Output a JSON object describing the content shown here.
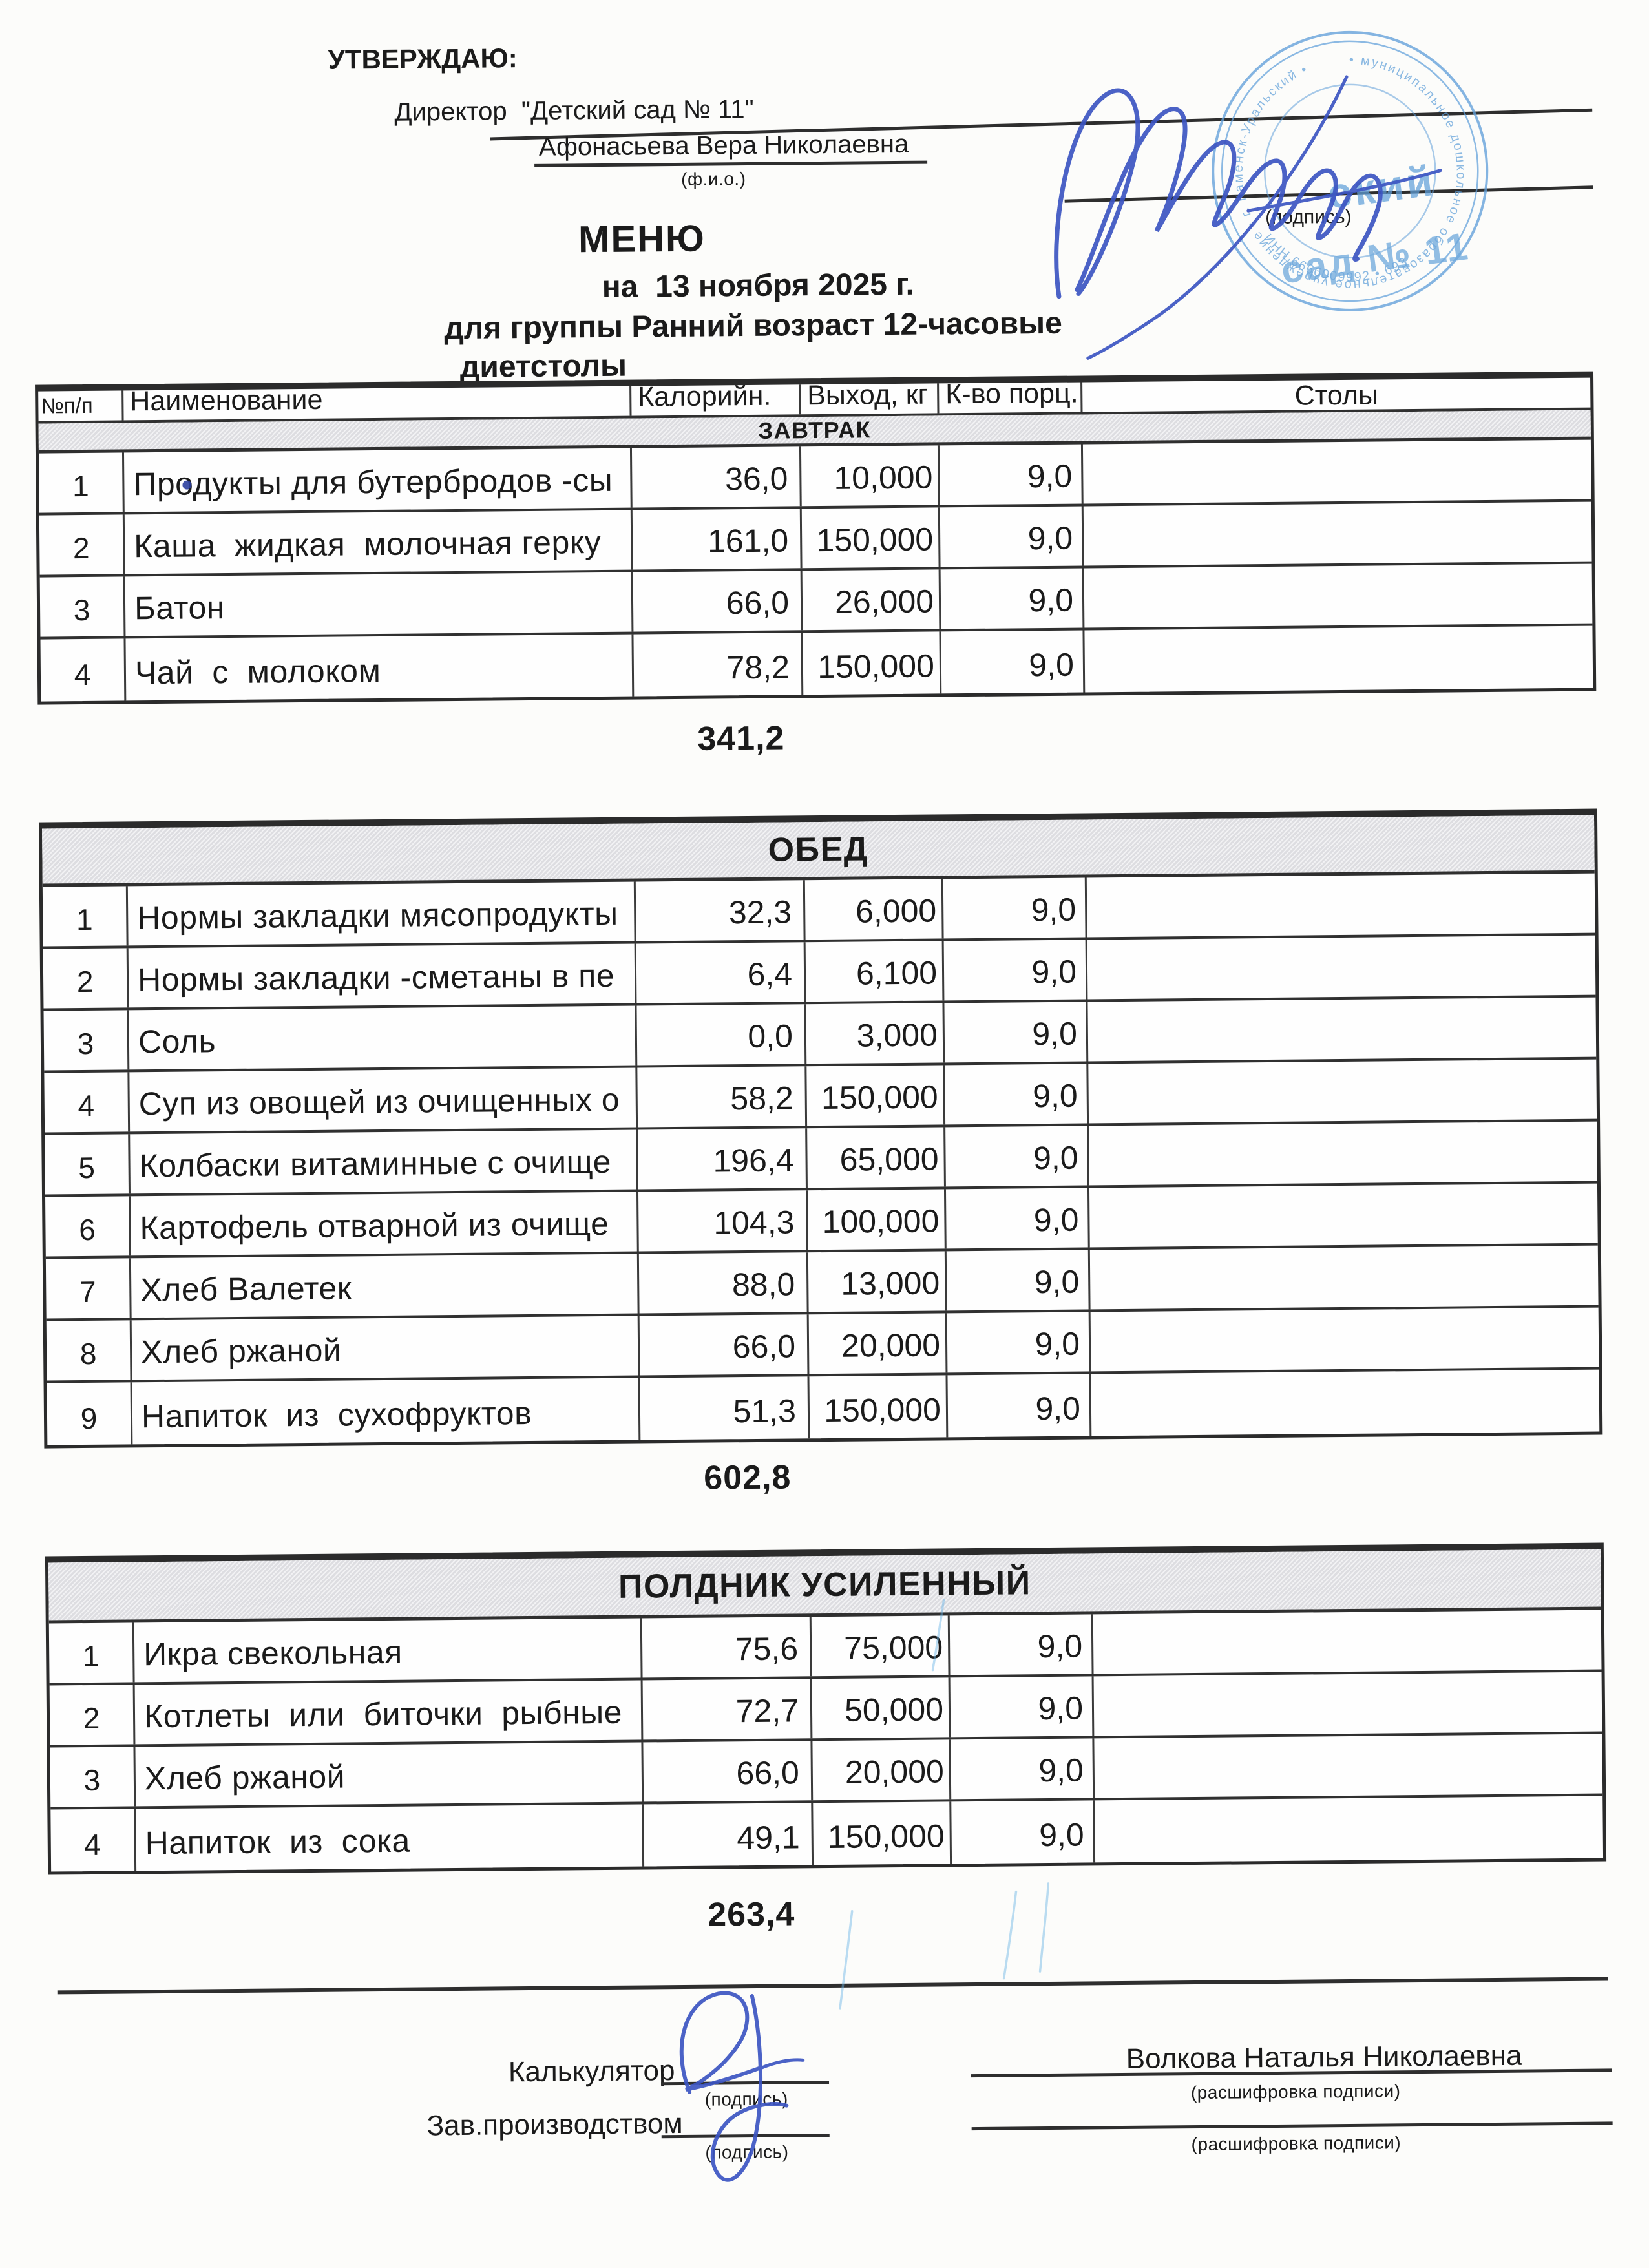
{
  "approval": {
    "approve": "УТВЕРЖДАЮ:",
    "director": "Директор  \"Детский сад № 11\"",
    "director_name": "Афонасьева Вера Николаевна",
    "fio_caption": "(ф.и.о.)",
    "sign_caption": "(подпись)"
  },
  "title": {
    "heading": "МЕНЮ",
    "date_line": "на  13 ноября 2025 г.",
    "group_line": "для группы Ранний возраст 12-часовые",
    "diet_line": "диетстолы"
  },
  "table_headers": {
    "num": "№п/п",
    "name": "Наименование",
    "calories": "Калорийн.",
    "output": "Выход, кг",
    "portions": "К-во порц.",
    "tables": "Столы"
  },
  "sections": [
    {
      "title": "ЗАВТРАК",
      "total": "341,2",
      "rows": [
        {
          "num": "1",
          "name": "Продукты для бутербродов -сы",
          "cal": "36,0",
          "out": "10,000",
          "port": "9,0"
        },
        {
          "num": "2",
          "name": "Каша  жидкая  молочная герку",
          "cal": "161,0",
          "out": "150,000",
          "port": "9,0"
        },
        {
          "num": "3",
          "name": "Батон",
          "cal": "66,0",
          "out": "26,000",
          "port": "9,0"
        },
        {
          "num": "4",
          "name": "Чай  с  молоком",
          "cal": "78,2",
          "out": "150,000",
          "port": "9,0"
        }
      ]
    },
    {
      "title": "ОБЕД",
      "total": "602,8",
      "rows": [
        {
          "num": "1",
          "name": "Нормы закладки мясопродукты",
          "cal": "32,3",
          "out": "6,000",
          "port": "9,0"
        },
        {
          "num": "2",
          "name": "Нормы закладки -сметаны в пе",
          "cal": "6,4",
          "out": "6,100",
          "port": "9,0"
        },
        {
          "num": "3",
          "name": "Соль",
          "cal": "0,0",
          "out": "3,000",
          "port": "9,0"
        },
        {
          "num": "4",
          "name": "Суп из овощей из очищенных о",
          "cal": "58,2",
          "out": "150,000",
          "port": "9,0"
        },
        {
          "num": "5",
          "name": "Колбаски витаминные с очище",
          "cal": "196,4",
          "out": "65,000",
          "port": "9,0"
        },
        {
          "num": "6",
          "name": "Картофель отварной из очище",
          "cal": "104,3",
          "out": "100,000",
          "port": "9,0"
        },
        {
          "num": "7",
          "name": "Хлеб Валетек",
          "cal": "88,0",
          "out": "13,000",
          "port": "9,0"
        },
        {
          "num": "8",
          "name": "Хлеб ржаной",
          "cal": "66,0",
          "out": "20,000",
          "port": "9,0"
        },
        {
          "num": "9",
          "name": "Напиток  из  сухофруктов",
          "cal": "51,3",
          "out": "150,000",
          "port": "9,0"
        }
      ]
    },
    {
      "title": "ПОЛДНИК УСИЛЕННЫЙ",
      "total": "263,4",
      "rows": [
        {
          "num": "1",
          "name": "Икра свекольная",
          "cal": "75,6",
          "out": "75,000",
          "port": "9,0"
        },
        {
          "num": "2",
          "name": "Котлеты  или  биточки  рыбные",
          "cal": "72,7",
          "out": "50,000",
          "port": "9,0"
        },
        {
          "num": "3",
          "name": "Хлеб ржаной",
          "cal": "66,0",
          "out": "20,000",
          "port": "9,0"
        },
        {
          "num": "4",
          "name": "Напиток  из  сока",
          "cal": "49,1",
          "out": "150,000",
          "port": "9,0"
        }
      ]
    }
  ],
  "footer": {
    "calculator_label": "Калькулятор",
    "production_label": "Зав.производством",
    "calculator_name": "Волкова Наталья Николаевна",
    "sign_caption": "(подпись)",
    "transcript_caption": "(расшифровка подписи)"
  },
  "stamp": {
    "color": "#5f9fd9",
    "center_line_1": "ский",
    "center_line_2": "сад № 11",
    "ring_text": "• муниципальное дошкольное образовательное учреждение • г. Каменск-Уральский •",
    "inn_text": "ИНН 6666009992 • 693"
  }
}
